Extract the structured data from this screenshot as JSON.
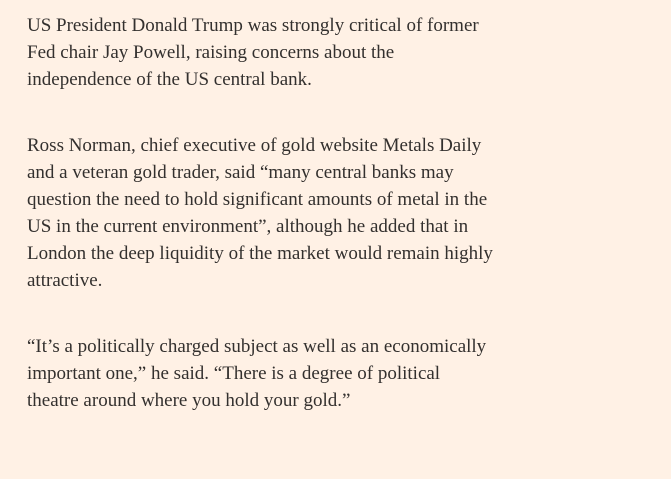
{
  "article": {
    "paragraphs": [
      {
        "lines": [
          "US President Donald Trump was strongly critical of former",
          "Fed chair Jay Powell, raising concerns about the",
          "independence of the US central bank."
        ]
      },
      {
        "lines": [
          "Ross Norman, chief executive of gold website Metals Daily",
          "and a veteran gold trader, said “many central banks may",
          "question the need to hold significant amounts of metal in the",
          "US in the current environment”, although he added that in",
          "London the deep liquidity of the market would remain highly",
          "attractive."
        ]
      },
      {
        "lines": [
          "“It’s a politically charged subject as well as an economically",
          "important one,” he said. “There is a degree of political",
          "theatre around where you hold your gold.”"
        ]
      }
    ]
  }
}
